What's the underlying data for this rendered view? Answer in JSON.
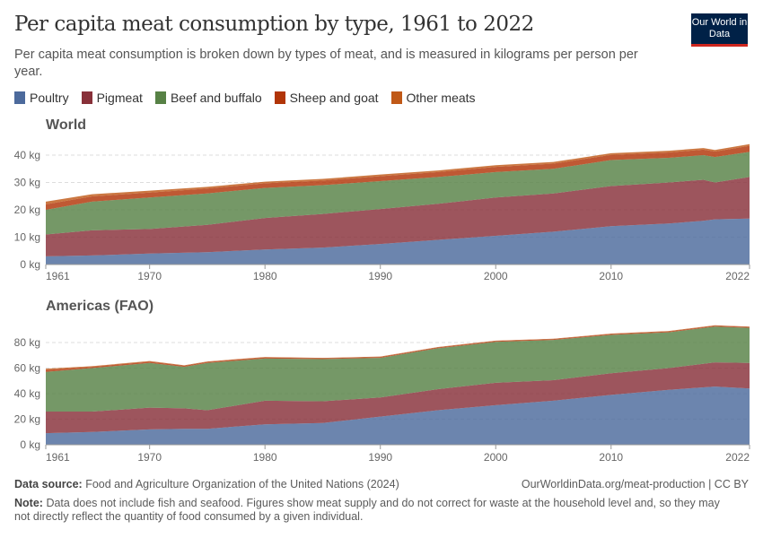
{
  "header": {
    "title": "Per capita meat consumption by type, 1961 to 2022",
    "subtitle": "Per capita meat consumption is broken down by types of meat, and is measured in kilograms per person per year.",
    "logo": "Our World in Data"
  },
  "colors": {
    "Poultry": "#4c6a9c",
    "Pigmeat": "#883039",
    "Beef and buffalo": "#578145",
    "Sheep and goat": "#b13507",
    "Other meats": "#c05917"
  },
  "footer": {
    "source_label": "Data source:",
    "source": "Food and Agriculture Organization of the United Nations (2024)",
    "url": "OurWorldinData.org/meat-production | CC BY",
    "note_label": "Note:",
    "note": "Data does not include fish and seafood. Figures show meat supply and do not correct for waste at the household level and, so they may not directly reflect the quantity of food consumed by a given individual."
  },
  "chart_data": [
    {
      "type": "area",
      "stacked": true,
      "title": "World",
      "unit": "kg",
      "ylim": [
        0,
        44
      ],
      "yticks": [
        "0 kg",
        "10 kg",
        "20 kg",
        "30 kg",
        "40 kg"
      ],
      "xticks": [
        "1961",
        "1970",
        "1980",
        "1990",
        "2000",
        "2010",
        "2022"
      ],
      "legend": "top",
      "x": [
        1961,
        1965,
        1970,
        1975,
        1980,
        1985,
        1990,
        1995,
        2000,
        2005,
        2010,
        2015,
        2018,
        2019,
        2022
      ],
      "series": [
        {
          "name": "Poultry",
          "values": [
            3,
            3.3,
            4,
            4.5,
            5.5,
            6.2,
            7.5,
            9,
            10.5,
            12,
            14,
            15,
            16,
            16.5,
            16.8
          ]
        },
        {
          "name": "Pigmeat",
          "values": [
            8,
            9.2,
            9,
            10,
            11.5,
            12.3,
            12.8,
            13.2,
            14,
            14,
            14.7,
            15,
            15,
            13.5,
            15.2
          ]
        },
        {
          "name": "Beef and buffalo",
          "values": [
            9,
            10.5,
            11.5,
            11.5,
            11,
            10.5,
            10.2,
            9.8,
            9.3,
            9,
            9.5,
            9,
            9,
            9.3,
            9.2
          ]
        },
        {
          "name": "Sheep and goat",
          "values": [
            2,
            1.9,
            1.8,
            1.8,
            1.7,
            1.7,
            1.8,
            1.8,
            1.9,
            1.9,
            1.9,
            2,
            2,
            2,
            2.2
          ]
        },
        {
          "name": "Other meats",
          "values": [
            1,
            0.8,
            0.7,
            0.6,
            0.6,
            0.6,
            0.6,
            0.6,
            0.6,
            0.6,
            0.6,
            0.6,
            0.6,
            0.6,
            0.6
          ]
        }
      ]
    },
    {
      "type": "area",
      "stacked": true,
      "title": "Americas (FAO)",
      "unit": "kg",
      "ylim": [
        0,
        92
      ],
      "yticks": [
        "0 kg",
        "20 kg",
        "40 kg",
        "60 kg",
        "80 kg"
      ],
      "xticks": [
        "1961",
        "1970",
        "1980",
        "1990",
        "2000",
        "2010",
        "2022"
      ],
      "x": [
        1961,
        1965,
        1970,
        1973,
        1975,
        1980,
        1985,
        1990,
        1995,
        2000,
        2005,
        2010,
        2015,
        2019,
        2022
      ],
      "series": [
        {
          "name": "Poultry",
          "values": [
            9,
            10,
            12,
            12.5,
            12.5,
            16,
            17,
            22,
            27,
            31,
            34.5,
            39,
            43,
            45.5,
            44
          ]
        },
        {
          "name": "Pigmeat",
          "values": [
            17,
            16,
            17,
            16,
            14.5,
            18.5,
            17,
            15,
            16.5,
            17.5,
            16,
            17,
            17,
            19,
            20
          ]
        },
        {
          "name": "Beef and buffalo",
          "values": [
            31,
            34,
            35,
            32.5,
            37,
            33,
            33,
            31,
            32,
            32,
            31.5,
            30,
            28,
            28,
            27.5
          ]
        },
        {
          "name": "Sheep and goat",
          "values": [
            1.5,
            1,
            1,
            0.8,
            0.8,
            0.8,
            0.7,
            0.7,
            0.7,
            0.7,
            0.7,
            0.7,
            0.7,
            0.7,
            0.7
          ]
        },
        {
          "name": "Other meats",
          "values": [
            1,
            0.5,
            0.5,
            0.4,
            0.4,
            0.4,
            0.3,
            0.3,
            0.3,
            0.3,
            0.3,
            0.3,
            0.3,
            0.3,
            0.3
          ]
        }
      ]
    }
  ]
}
